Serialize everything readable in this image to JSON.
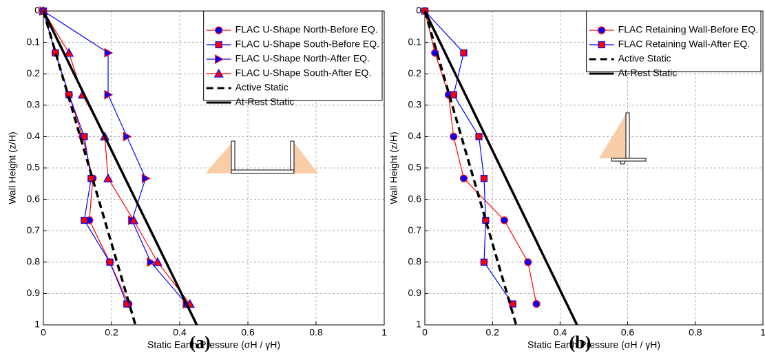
{
  "chart_data": [
    {
      "type": "line",
      "caption": "(a)",
      "xlabel": "Static Earth Pressure (σH / γH)",
      "ylabel": "Wall Height (z/H)",
      "xlim": [
        0,
        1
      ],
      "ylim": [
        0,
        1
      ],
      "y_inverted": true,
      "grid": true,
      "legend": "upper right",
      "xticks": [
        0,
        0.2,
        0.4,
        0.6,
        0.8,
        1
      ],
      "yticks": [
        0,
        0.1,
        0.2,
        0.3,
        0.4,
        0.5,
        0.6,
        0.7,
        0.8,
        0.9,
        1
      ],
      "series": [
        {
          "name": "FLAC U-Shape North-Before EQ.",
          "color": "#ff0000",
          "marker": "circle",
          "marker_color": "#0000ff",
          "marker_edge": "#ff0000",
          "x": [
            0,
            0.035,
            0.075,
            0.115,
            0.145,
            0.135,
            0.195,
            0.25
          ],
          "y": [
            0,
            0.1333,
            0.2667,
            0.4,
            0.5333,
            0.6667,
            0.8,
            0.9333
          ]
        },
        {
          "name": "FLAC U-Shape South-Before EQ.",
          "color": "#0000ff",
          "marker": "square",
          "marker_color": "#ff0000",
          "marker_edge": "#0000ff",
          "x": [
            0,
            0.035,
            0.075,
            0.12,
            0.14,
            0.12,
            0.195,
            0.245
          ],
          "y": [
            0,
            0.1333,
            0.2667,
            0.4,
            0.5333,
            0.6667,
            0.8,
            0.9333
          ]
        },
        {
          "name": "FLAC U-Shape North-After EQ.",
          "color": "#0000ff",
          "marker": "triangle-right",
          "marker_color": "#0000ff",
          "marker_edge": "#ff0000",
          "x": [
            0,
            0.19,
            0.19,
            0.245,
            0.3,
            0.26,
            0.315,
            0.42
          ],
          "y": [
            0,
            0.1333,
            0.2667,
            0.4,
            0.5333,
            0.6667,
            0.8,
            0.9333
          ]
        },
        {
          "name": "FLAC U-Shape South-After EQ.",
          "color": "#ff0000",
          "marker": "triangle-up",
          "marker_color": "#ff0000",
          "marker_edge": "#0000ff",
          "x": [
            0,
            0.075,
            0.115,
            0.18,
            0.19,
            0.265,
            0.335,
            0.43
          ],
          "y": [
            0,
            0.1333,
            0.2667,
            0.4,
            0.5333,
            0.6667,
            0.8,
            0.9333
          ]
        },
        {
          "name": "Active Static",
          "color": "#000000",
          "linestyle": "dashed",
          "x": [
            0,
            0.27
          ],
          "y": [
            0,
            1
          ]
        },
        {
          "name": "At-Rest Static",
          "color": "#000000",
          "linestyle": "solid",
          "x": [
            0,
            0.45
          ],
          "y": [
            0,
            1
          ]
        }
      ]
    },
    {
      "type": "line",
      "caption": "(b)",
      "xlabel": "Static Earth Pressure (σH / γH)",
      "ylabel": "Wall Height (z/H)",
      "xlim": [
        0,
        1
      ],
      "ylim": [
        0,
        1
      ],
      "y_inverted": true,
      "grid": true,
      "legend": "upper right",
      "xticks": [
        0,
        0.2,
        0.4,
        0.6,
        0.8,
        1
      ],
      "yticks": [
        0,
        0.1,
        0.2,
        0.3,
        0.4,
        0.5,
        0.6,
        0.7,
        0.8,
        0.9,
        1
      ],
      "series": [
        {
          "name": "FLAC Retaining Wall-Before EQ.",
          "color": "#ff0000",
          "marker": "circle",
          "marker_color": "#0000ff",
          "marker_edge": "#ff0000",
          "x": [
            0,
            0.03,
            0.07,
            0.085,
            0.115,
            0.235,
            0.305,
            0.33
          ],
          "y": [
            0,
            0.1333,
            0.2667,
            0.4,
            0.5333,
            0.6667,
            0.8,
            0.9333
          ]
        },
        {
          "name": "FLAC Retaining Wall-After EQ.",
          "color": "#0000ff",
          "marker": "square",
          "marker_color": "#ff0000",
          "marker_edge": "#0000ff",
          "x": [
            0,
            0.115,
            0.085,
            0.16,
            0.175,
            0.18,
            0.175,
            0.26
          ],
          "y": [
            0,
            0.1333,
            0.2667,
            0.4,
            0.5333,
            0.6667,
            0.8,
            0.9333
          ]
        },
        {
          "name": "Active Static",
          "color": "#000000",
          "linestyle": "dashed",
          "x": [
            0,
            0.27
          ],
          "y": [
            0,
            1
          ]
        },
        {
          "name": "At-Rest Static",
          "color": "#000000",
          "linestyle": "solid",
          "x": [
            0,
            0.45
          ],
          "y": [
            0,
            1
          ]
        }
      ]
    }
  ]
}
